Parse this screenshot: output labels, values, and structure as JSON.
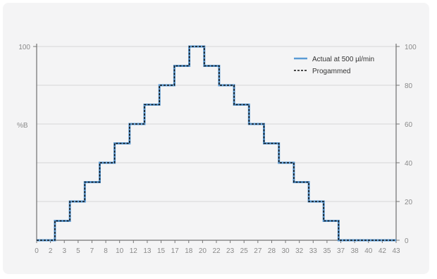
{
  "chart_data": {
    "type": "line",
    "ylabel": "%B",
    "x_tick_labels": [
      "0",
      "2",
      "3",
      "5",
      "7",
      "8",
      "10",
      "12",
      "13",
      "15",
      "17",
      "18",
      "20",
      "22",
      "23",
      "25",
      "27",
      "28",
      "30",
      "32",
      "33",
      "35",
      "37",
      "38",
      "40",
      "42",
      "43"
    ],
    "left_y_tick_labels": [
      "100"
    ],
    "right_y_tick_labels": [
      "0",
      "20",
      "40",
      "60",
      "80",
      "100"
    ],
    "xlim": [
      0,
      43.33
    ],
    "ylim": [
      0,
      100
    ],
    "grid": "horizontal",
    "legend_position": "top-right",
    "series": [
      {
        "name": "Actual at 500 µl/min",
        "style": "solid",
        "color": "#5b9bd5",
        "x": [
          0,
          2.2,
          2.2,
          4.0,
          4.0,
          5.8,
          5.8,
          7.6,
          7.6,
          9.4,
          9.4,
          11.2,
          11.2,
          13.0,
          13.0,
          14.8,
          14.8,
          16.6,
          16.6,
          18.4,
          18.4,
          20.2,
          20.2,
          22.0,
          22.0,
          23.8,
          23.8,
          25.6,
          25.6,
          27.4,
          27.4,
          29.2,
          29.2,
          31.0,
          31.0,
          32.8,
          32.8,
          34.6,
          34.6,
          36.4,
          36.4,
          38.2,
          38.2,
          40.0,
          40.0,
          43.33
        ],
        "y": [
          0,
          0,
          10,
          10,
          20,
          20,
          30,
          30,
          40,
          40,
          50,
          50,
          60,
          60,
          70,
          70,
          80,
          80,
          90,
          90,
          100,
          100,
          90,
          90,
          80,
          80,
          70,
          70,
          60,
          60,
          50,
          50,
          40,
          40,
          30,
          30,
          20,
          20,
          10,
          10,
          0,
          0,
          0,
          0,
          0,
          0
        ]
      },
      {
        "name": "Progammed",
        "style": "dashed",
        "color": "#111111",
        "x": [
          0,
          2.2,
          2.2,
          4.0,
          4.0,
          5.8,
          5.8,
          7.6,
          7.6,
          9.4,
          9.4,
          11.2,
          11.2,
          13.0,
          13.0,
          14.8,
          14.8,
          16.6,
          16.6,
          18.4,
          18.4,
          20.2,
          20.2,
          22.0,
          22.0,
          23.8,
          23.8,
          25.6,
          25.6,
          27.4,
          27.4,
          29.2,
          29.2,
          31.0,
          31.0,
          32.8,
          32.8,
          34.6,
          34.6,
          36.4,
          36.4,
          38.2,
          38.2,
          40.0,
          40.0,
          43.33
        ],
        "y": [
          0,
          0,
          10,
          10,
          20,
          20,
          30,
          30,
          40,
          40,
          50,
          50,
          60,
          60,
          70,
          70,
          80,
          80,
          90,
          90,
          100,
          100,
          90,
          90,
          80,
          80,
          70,
          70,
          60,
          60,
          50,
          50,
          40,
          40,
          30,
          30,
          20,
          20,
          10,
          10,
          0,
          0,
          0,
          0,
          0,
          0
        ]
      }
    ]
  }
}
